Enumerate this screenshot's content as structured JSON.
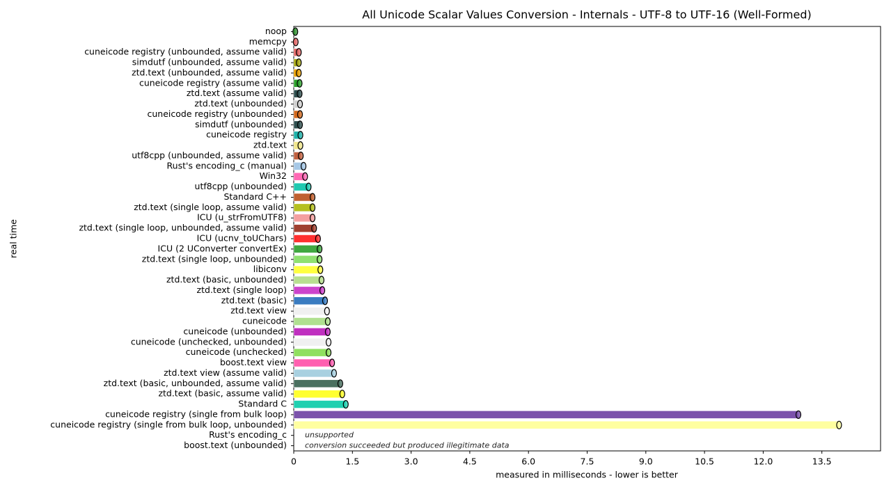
{
  "chart_data": {
    "type": "barh",
    "title": "All Unicode Scalar Values Conversion - Internals - UTF-8 to UTF-16 (Well-Formed)",
    "xlabel": "measured in milliseconds - lower is better",
    "ylabel": "real time",
    "categories": [
      "noop",
      "memcpy",
      "cuneicode registry (unbounded, assume valid)",
      "simdutf (unbounded, assume valid)",
      "ztd.text (unbounded, assume valid)",
      "cuneicode registry (assume valid)",
      "ztd.text (assume valid)",
      "ztd.text (unbounded)",
      "cuneicode registry (unbounded)",
      "simdutf (unbounded)",
      "cuneicode registry",
      "ztd.text",
      "utf8cpp (unbounded, assume valid)",
      "Rust's encoding_c (manual)",
      "Win32",
      "utf8cpp (unbounded)",
      "Standard C++",
      "ztd.text (single loop, assume valid)",
      "ICU (u_strFromUTF8)",
      "ztd.text (single loop, unbounded, assume valid)",
      "ICU (ucnv_toUChars)",
      "ICU (2 UConverter convertEx)",
      "ztd.text (single loop, unbounded)",
      "libiconv",
      "ztd.text (basic, unbounded)",
      "ztd.text (single loop)",
      "ztd.text (basic)",
      "ztd.text view",
      "cuneicode",
      "cuneicode (unbounded)",
      "cuneicode (unchecked, unbounded)",
      "cuneicode (unchecked)",
      "boost.text view",
      "ztd.text view (assume valid)",
      "ztd.text (basic, unbounded, assume valid)",
      "ztd.text (basic, assume valid)",
      "Standard C",
      "cuneicode registry (single from bulk loop)",
      "cuneicode registry (single from bulk loop, unbounded)",
      "Rust's encoding_c",
      "boost.text (unbounded)"
    ],
    "values": [
      0.04,
      0.05,
      0.13,
      0.13,
      0.13,
      0.15,
      0.15,
      0.16,
      0.16,
      0.16,
      0.17,
      0.17,
      0.18,
      0.25,
      0.29,
      0.38,
      0.48,
      0.48,
      0.48,
      0.52,
      0.62,
      0.66,
      0.66,
      0.68,
      0.71,
      0.73,
      0.8,
      0.85,
      0.87,
      0.87,
      0.89,
      0.89,
      0.98,
      1.03,
      1.19,
      1.24,
      1.33,
      12.9,
      13.94,
      null,
      null
    ],
    "colors": [
      "#2e8b2e",
      "#e06666",
      "#e06666",
      "#a6a614",
      "#e69f00",
      "#2ca02c",
      "#2f4f4f",
      "#d0d0d0",
      "#d2691e",
      "#2f4f4f",
      "#20b2aa",
      "#f0e68c",
      "#c06040",
      "#a6c8e6",
      "#ff69b4",
      "#20c9b0",
      "#c06030",
      "#b5c020",
      "#f4a0a0",
      "#a04030",
      "#ff3030",
      "#40a840",
      "#90e070",
      "#ffff40",
      "#b8e090",
      "#cc44cc",
      "#3a7cc0",
      "#f0f0f0",
      "#b0e090",
      "#c030c0",
      "#f0f0f0",
      "#90e060",
      "#ff60b0",
      "#a8d0e0",
      "#4a7060",
      "#ffff30",
      "#20d0b0",
      "#7b52ab",
      "#ffffa0",
      "#ffffff",
      "#ffffff"
    ],
    "annotations": [
      "unsupported",
      "conversion succeeded but produced illegitimate data"
    ],
    "xlim": [
      0,
      15
    ],
    "xticks": [
      0,
      1.5,
      {
        "value": 3,
        "label": "3.0"
      },
      4.5,
      {
        "value": 6,
        "label": "6.0"
      },
      7.5,
      {
        "value": 9,
        "label": "9.0"
      },
      10.5,
      {
        "value": 12,
        "label": "12.0"
      },
      13.5
    ]
  }
}
